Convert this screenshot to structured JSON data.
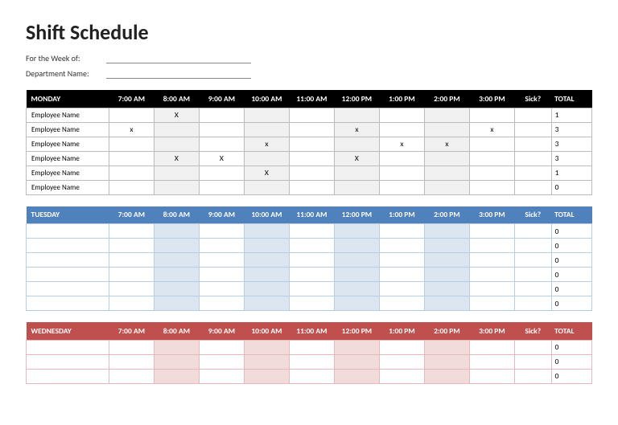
{
  "title": "Shift Schedule",
  "meta": {
    "week_label": "For the Week of:",
    "dept_label": "Department Name:"
  },
  "time_headers": [
    "7:00 AM",
    "8:00 AM",
    "9:00 AM",
    "10:00 AM",
    "11:00 AM",
    "12:00 PM",
    "1:00 PM",
    "2:00 PM",
    "3:00 PM"
  ],
  "sick_header": "Sick?",
  "total_header": "TOTAL",
  "shaded_columns": [
    1,
    3,
    5,
    7
  ],
  "days": [
    {
      "name": "MONDAY",
      "header_bg": "#000000",
      "header_fg": "#ffffff",
      "tint": "#f0f0f0",
      "border": "#bbbbbb",
      "rows": [
        {
          "label": "Employee Name",
          "marks": [
            "",
            "X",
            "",
            "",
            "",
            "",
            "",
            "",
            ""
          ],
          "total": "1"
        },
        {
          "label": "Employee Name",
          "marks": [
            "x",
            "",
            "",
            "",
            "",
            "x",
            "",
            "",
            "x"
          ],
          "total": "3"
        },
        {
          "label": "Employee Name",
          "marks": [
            "",
            "",
            "",
            "x",
            "",
            "",
            "x",
            "x",
            ""
          ],
          "total": "3"
        },
        {
          "label": "Employee Name",
          "marks": [
            "",
            "X",
            "X",
            "",
            "",
            "X",
            "",
            "",
            ""
          ],
          "total": "3"
        },
        {
          "label": "Employee Name",
          "marks": [
            "",
            "",
            "",
            "X",
            "",
            "",
            "",
            "",
            ""
          ],
          "total": "1"
        },
        {
          "label": "Employee Name",
          "marks": [
            "",
            "",
            "",
            "",
            "",
            "",
            "",
            "",
            ""
          ],
          "total": "0"
        }
      ]
    },
    {
      "name": "TUESDAY",
      "header_bg": "#4f81bd",
      "header_fg": "#ffffff",
      "tint": "#dce6f1",
      "border": "#b8cce4",
      "rows": [
        {
          "label": "",
          "marks": [
            "",
            "",
            "",
            "",
            "",
            "",
            "",
            "",
            ""
          ],
          "total": "0"
        },
        {
          "label": "",
          "marks": [
            "",
            "",
            "",
            "",
            "",
            "",
            "",
            "",
            ""
          ],
          "total": "0"
        },
        {
          "label": "",
          "marks": [
            "",
            "",
            "",
            "",
            "",
            "",
            "",
            "",
            ""
          ],
          "total": "0"
        },
        {
          "label": "",
          "marks": [
            "",
            "",
            "",
            "",
            "",
            "",
            "",
            "",
            ""
          ],
          "total": "0"
        },
        {
          "label": "",
          "marks": [
            "",
            "",
            "",
            "",
            "",
            "",
            "",
            "",
            ""
          ],
          "total": "0"
        },
        {
          "label": "",
          "marks": [
            "",
            "",
            "",
            "",
            "",
            "",
            "",
            "",
            ""
          ],
          "total": "0"
        }
      ]
    },
    {
      "name": "WEDNESDAY",
      "header_bg": "#c0504d",
      "header_fg": "#ffffff",
      "tint": "#f2dcdb",
      "border": "#e6b8b7",
      "rows": [
        {
          "label": "",
          "marks": [
            "",
            "",
            "",
            "",
            "",
            "",
            "",
            "",
            ""
          ],
          "total": "0"
        },
        {
          "label": "",
          "marks": [
            "",
            "",
            "",
            "",
            "",
            "",
            "",
            "",
            ""
          ],
          "total": "0"
        },
        {
          "label": "",
          "marks": [
            "",
            "",
            "",
            "",
            "",
            "",
            "",
            "",
            ""
          ],
          "total": "0"
        }
      ]
    }
  ]
}
